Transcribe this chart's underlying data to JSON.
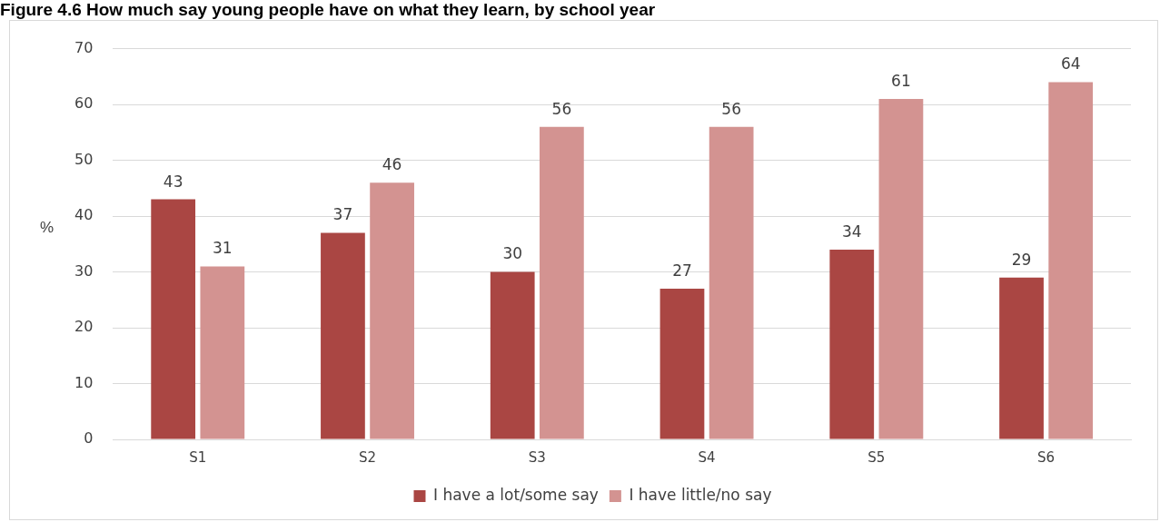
{
  "chart_data": {
    "type": "bar",
    "title": "Figure 4.6 How much say young people have on what they learn, by school year",
    "ylabel": "%",
    "categories": [
      "S1",
      "S2",
      "S3",
      "S4",
      "S5",
      "S6"
    ],
    "series": [
      {
        "name": "I have a lot/some say",
        "color": "#aa4643",
        "values": [
          43,
          37,
          30,
          27,
          34,
          29
        ]
      },
      {
        "name": "I have little/no say",
        "color": "#d39391",
        "values": [
          31,
          46,
          56,
          56,
          61,
          64
        ]
      }
    ],
    "ylim": [
      0,
      70
    ],
    "yticks": [
      0,
      10,
      20,
      30,
      40,
      50,
      60,
      70
    ],
    "grid": "y",
    "legend": "bottom",
    "data_labels": true
  }
}
